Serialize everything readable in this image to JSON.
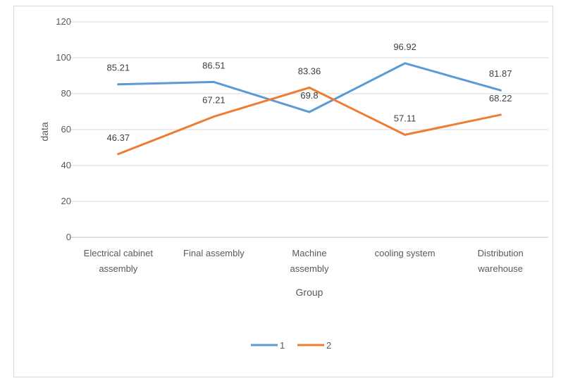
{
  "chart_data": {
    "type": "line",
    "categories": [
      [
        "Electrical cabinet",
        "assembly"
      ],
      [
        "Final assembly"
      ],
      [
        "Machine",
        "assembly"
      ],
      [
        "cooling system"
      ],
      [
        "Distribution",
        "warehouse"
      ]
    ],
    "series": [
      {
        "name": "1",
        "color": "#5b9bd5",
        "values": [
          85.21,
          86.51,
          69.8,
          96.92,
          81.87
        ]
      },
      {
        "name": "2",
        "color": "#ed7d31",
        "values": [
          46.37,
          67.21,
          83.36,
          57.11,
          68.22
        ]
      }
    ],
    "xlabel": "Group",
    "ylabel": "data",
    "ylim": [
      0,
      120
    ],
    "yticks": [
      0,
      20,
      40,
      60,
      80,
      100,
      120
    ],
    "grid": true,
    "legend_position": "bottom"
  }
}
